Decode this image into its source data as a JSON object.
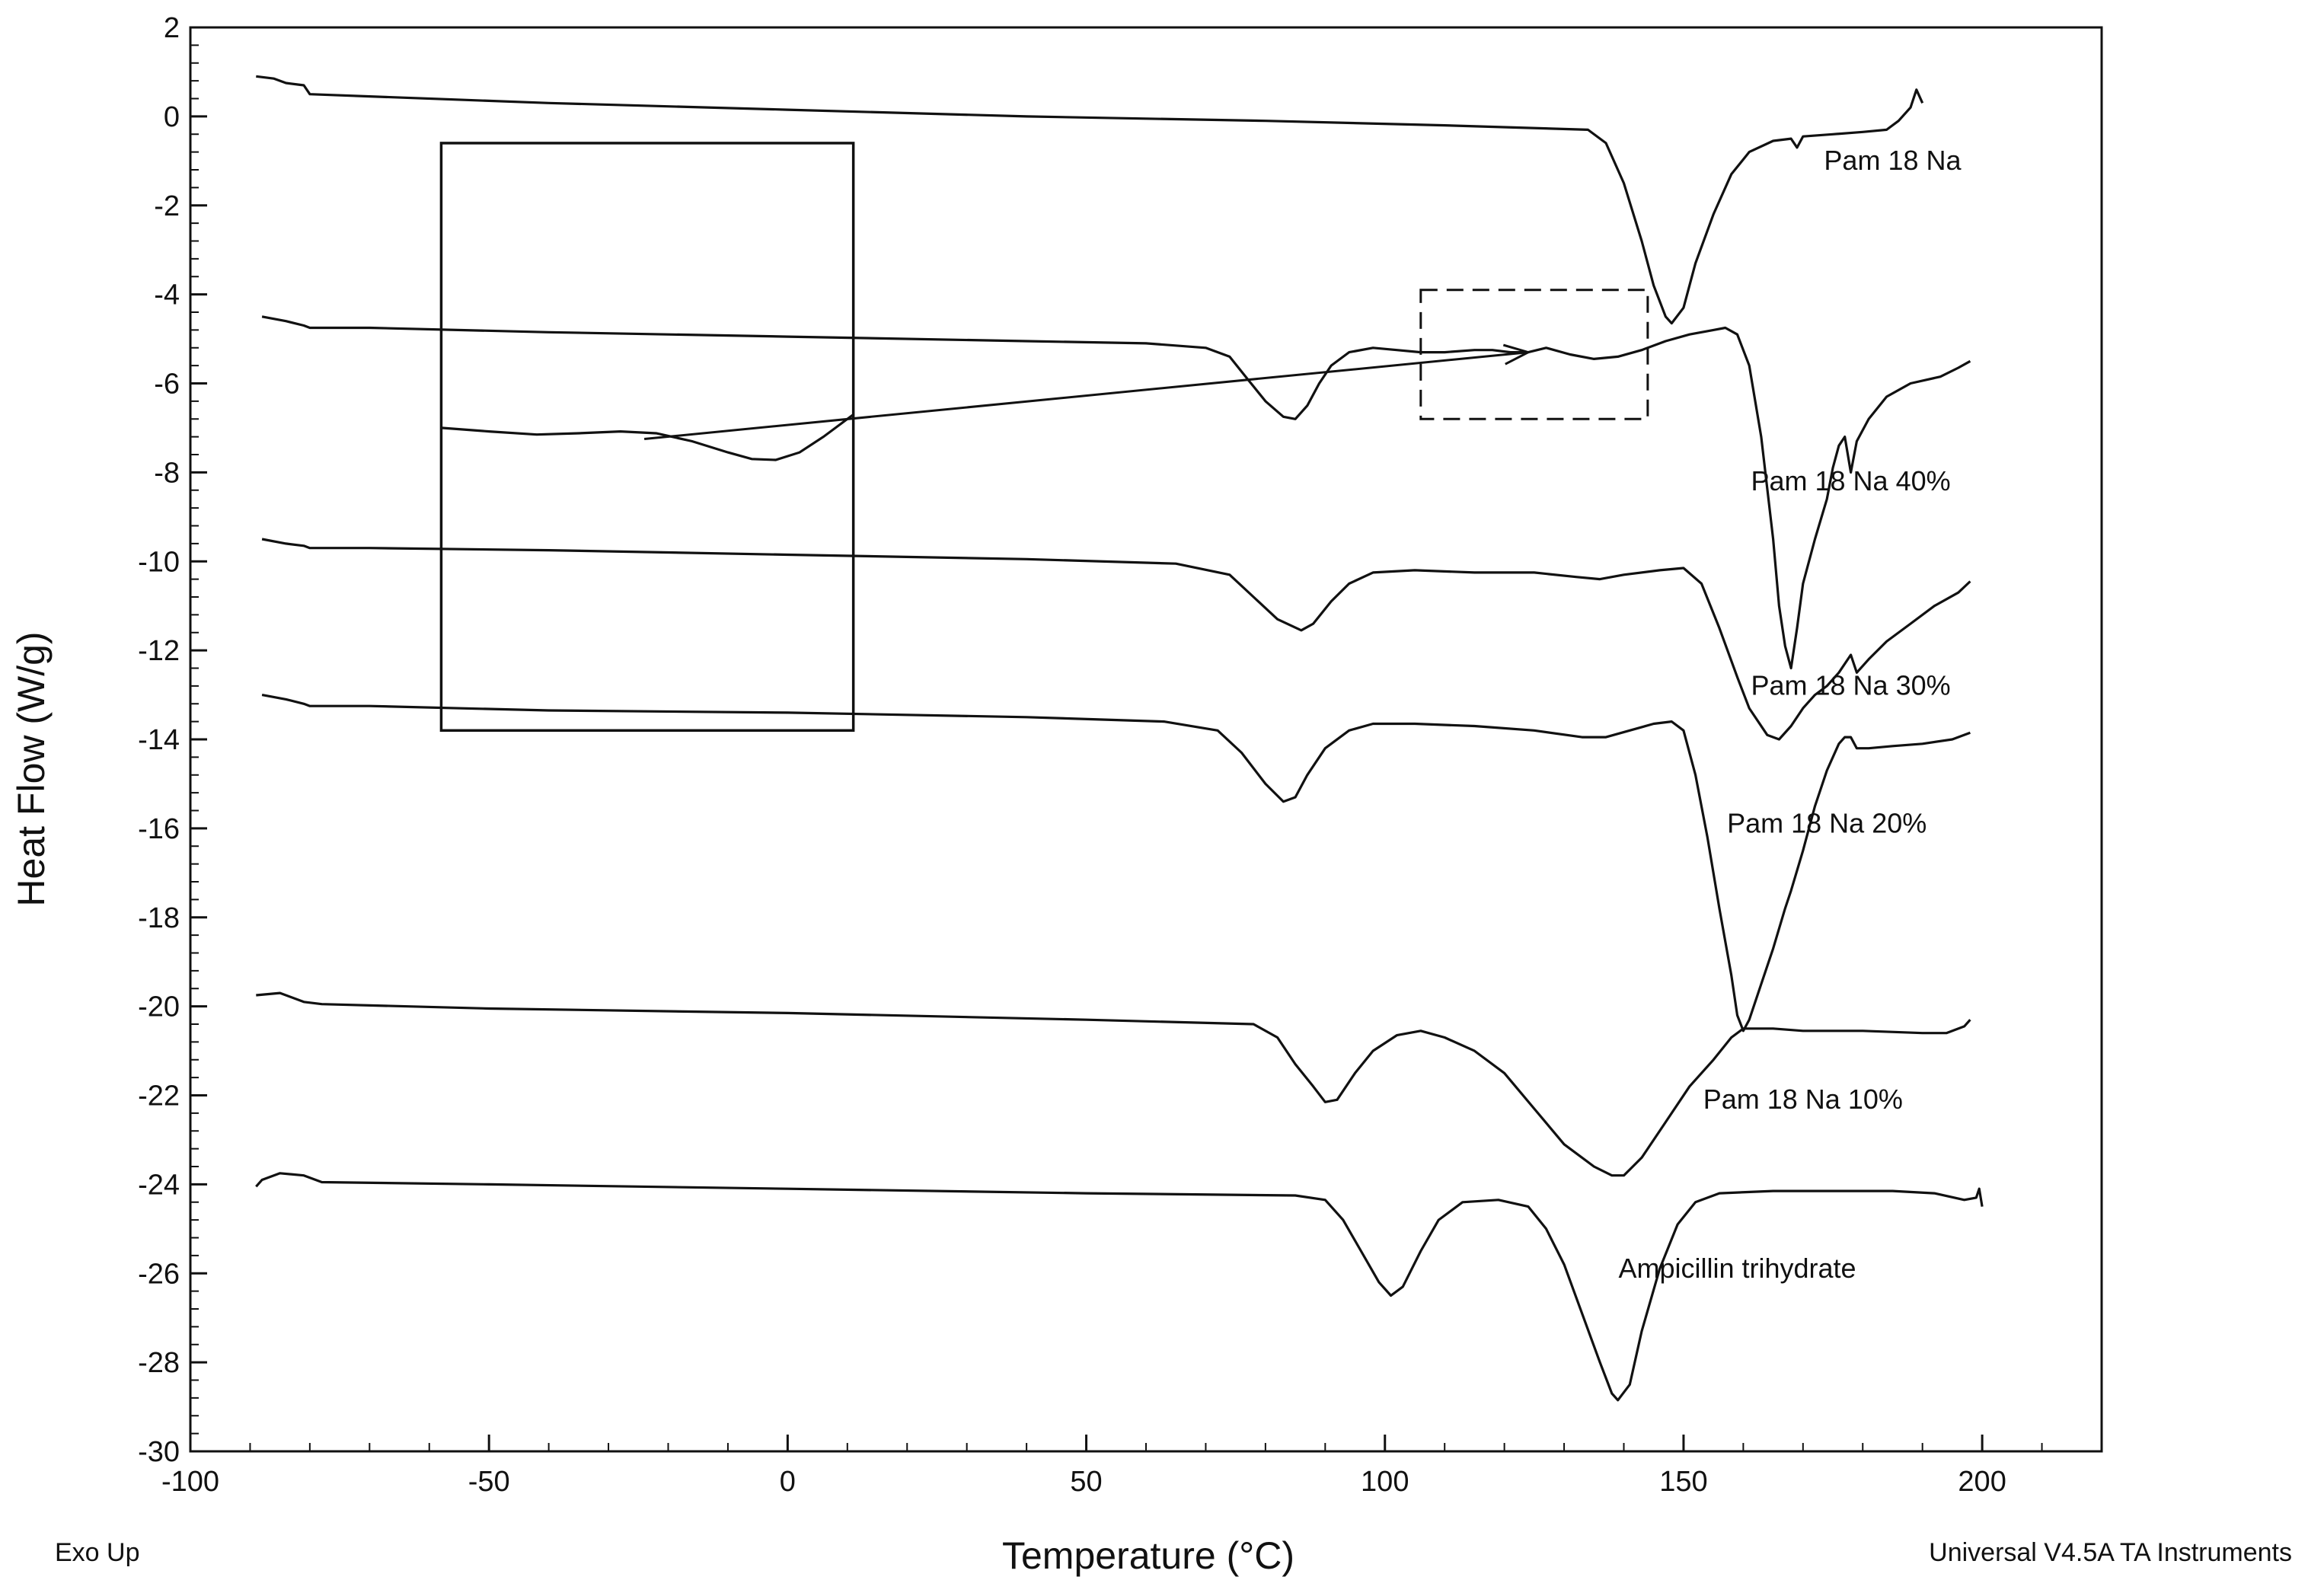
{
  "chart_data": {
    "type": "line",
    "xlabel": "Temperature (°C)",
    "ylabel": "Heat Flow (W/g)",
    "xlim": [
      -100,
      220
    ],
    "ylim": [
      -30,
      2
    ],
    "x_ticks": [
      -100,
      -50,
      0,
      50,
      100,
      150,
      200
    ],
    "y_ticks": [
      2,
      0,
      -2,
      -4,
      -6,
      -8,
      -10,
      -12,
      -14,
      -16,
      -18,
      -20,
      -22,
      -24,
      -26,
      -28,
      -30
    ],
    "grid": false,
    "legend": "none",
    "footer_left": "Exo Up",
    "footer_right": "Universal V4.5A TA Instruments",
    "series": [
      {
        "name": "Pam 18 Na",
        "label_at": [
          185,
          -1.2
        ],
        "points": [
          [
            -89,
            0.9
          ],
          [
            -86,
            0.85
          ],
          [
            -84,
            0.75
          ],
          [
            -81,
            0.7
          ],
          [
            -80,
            0.5
          ],
          [
            -70,
            0.45
          ],
          [
            -40,
            0.3
          ],
          [
            0,
            0.15
          ],
          [
            40,
            0.0
          ],
          [
            80,
            -0.1
          ],
          [
            110,
            -0.2
          ],
          [
            134,
            -0.3
          ],
          [
            137,
            -0.6
          ],
          [
            140,
            -1.5
          ],
          [
            143,
            -2.8
          ],
          [
            145,
            -3.8
          ],
          [
            147,
            -4.5
          ],
          [
            148,
            -4.65
          ],
          [
            150,
            -4.3
          ],
          [
            152,
            -3.3
          ],
          [
            155,
            -2.2
          ],
          [
            158,
            -1.3
          ],
          [
            161,
            -0.8
          ],
          [
            165,
            -0.55
          ],
          [
            168,
            -0.5
          ],
          [
            169,
            -0.7
          ],
          [
            170,
            -0.45
          ],
          [
            175,
            -0.4
          ],
          [
            180,
            -0.35
          ],
          [
            184,
            -0.3
          ],
          [
            186,
            -0.1
          ],
          [
            188,
            0.2
          ],
          [
            189,
            0.6
          ],
          [
            190,
            0.3
          ]
        ]
      },
      {
        "name": "Pam 18 Na 40%",
        "label_at": [
          178,
          -8.4
        ],
        "points": [
          [
            -88,
            -4.5
          ],
          [
            -84,
            -4.6
          ],
          [
            -81,
            -4.7
          ],
          [
            -80,
            -4.75
          ],
          [
            -70,
            -4.75
          ],
          [
            -40,
            -4.85
          ],
          [
            0,
            -4.95
          ],
          [
            40,
            -5.05
          ],
          [
            60,
            -5.1
          ],
          [
            70,
            -5.2
          ],
          [
            74,
            -5.4
          ],
          [
            77,
            -5.9
          ],
          [
            80,
            -6.4
          ],
          [
            83,
            -6.75
          ],
          [
            85,
            -6.8
          ],
          [
            87,
            -6.5
          ],
          [
            89,
            -6.0
          ],
          [
            91,
            -5.6
          ],
          [
            94,
            -5.3
          ],
          [
            98,
            -5.2
          ],
          [
            102,
            -5.25
          ],
          [
            106,
            -5.3
          ],
          [
            110,
            -5.3
          ],
          [
            115,
            -5.25
          ],
          [
            118,
            -5.25
          ],
          [
            121,
            -5.3
          ],
          [
            124,
            -5.3
          ],
          [
            127,
            -5.2
          ],
          [
            131,
            -5.35
          ],
          [
            135,
            -5.45
          ],
          [
            139,
            -5.4
          ],
          [
            143,
            -5.25
          ],
          [
            147,
            -5.05
          ],
          [
            151,
            -4.9
          ],
          [
            155,
            -4.8
          ],
          [
            157,
            -4.75
          ],
          [
            159,
            -4.9
          ],
          [
            161,
            -5.6
          ],
          [
            163,
            -7.2
          ],
          [
            165,
            -9.5
          ],
          [
            166,
            -11.0
          ],
          [
            167,
            -11.9
          ],
          [
            168,
            -12.4
          ],
          [
            169,
            -11.5
          ],
          [
            170,
            -10.5
          ],
          [
            172,
            -9.5
          ],
          [
            174,
            -8.6
          ],
          [
            175,
            -7.9
          ],
          [
            176,
            -7.4
          ],
          [
            177,
            -7.2
          ],
          [
            178,
            -8.0
          ],
          [
            179,
            -7.3
          ],
          [
            181,
            -6.8
          ],
          [
            184,
            -6.3
          ],
          [
            188,
            -6.0
          ],
          [
            193,
            -5.85
          ],
          [
            196,
            -5.65
          ],
          [
            198,
            -5.5
          ]
        ]
      },
      {
        "name": "Pam 18 Na 30%",
        "label_at": [
          178,
          -13.0
        ],
        "points": [
          [
            -88,
            -9.5
          ],
          [
            -84,
            -9.6
          ],
          [
            -81,
            -9.65
          ],
          [
            -80,
            -9.7
          ],
          [
            -70,
            -9.7
          ],
          [
            -40,
            -9.75
          ],
          [
            0,
            -9.85
          ],
          [
            40,
            -9.95
          ],
          [
            65,
            -10.05
          ],
          [
            74,
            -10.3
          ],
          [
            78,
            -10.8
          ],
          [
            82,
            -11.3
          ],
          [
            86,
            -11.55
          ],
          [
            88,
            -11.4
          ],
          [
            91,
            -10.9
          ],
          [
            94,
            -10.5
          ],
          [
            98,
            -10.25
          ],
          [
            105,
            -10.2
          ],
          [
            115,
            -10.25
          ],
          [
            125,
            -10.25
          ],
          [
            132,
            -10.35
          ],
          [
            136,
            -10.4
          ],
          [
            140,
            -10.3
          ],
          [
            146,
            -10.2
          ],
          [
            150,
            -10.15
          ],
          [
            153,
            -10.5
          ],
          [
            156,
            -11.5
          ],
          [
            159,
            -12.6
          ],
          [
            161,
            -13.3
          ],
          [
            164,
            -13.9
          ],
          [
            166,
            -14.0
          ],
          [
            168,
            -13.7
          ],
          [
            170,
            -13.3
          ],
          [
            172,
            -13.0
          ],
          [
            174,
            -12.8
          ],
          [
            176,
            -12.5
          ],
          [
            178,
            -12.1
          ],
          [
            179,
            -12.5
          ],
          [
            181,
            -12.2
          ],
          [
            184,
            -11.8
          ],
          [
            188,
            -11.4
          ],
          [
            192,
            -11.0
          ],
          [
            196,
            -10.7
          ],
          [
            198,
            -10.45
          ]
        ]
      },
      {
        "name": "Pam 18 Na 20%",
        "label_at": [
          174,
          -16.1
        ],
        "points": [
          [
            -88,
            -13.0
          ],
          [
            -84,
            -13.1
          ],
          [
            -81,
            -13.2
          ],
          [
            -80,
            -13.25
          ],
          [
            -70,
            -13.25
          ],
          [
            -40,
            -13.35
          ],
          [
            0,
            -13.4
          ],
          [
            40,
            -13.5
          ],
          [
            63,
            -13.6
          ],
          [
            72,
            -13.8
          ],
          [
            76,
            -14.3
          ],
          [
            80,
            -15.0
          ],
          [
            83,
            -15.4
          ],
          [
            85,
            -15.3
          ],
          [
            87,
            -14.8
          ],
          [
            90,
            -14.2
          ],
          [
            94,
            -13.8
          ],
          [
            98,
            -13.65
          ],
          [
            105,
            -13.65
          ],
          [
            115,
            -13.7
          ],
          [
            125,
            -13.8
          ],
          [
            133,
            -13.95
          ],
          [
            137,
            -13.95
          ],
          [
            141,
            -13.8
          ],
          [
            145,
            -13.65
          ],
          [
            148,
            -13.6
          ],
          [
            150,
            -13.8
          ],
          [
            152,
            -14.8
          ],
          [
            154,
            -16.2
          ],
          [
            156,
            -17.8
          ],
          [
            158,
            -19.3
          ],
          [
            159,
            -20.2
          ],
          [
            160,
            -20.55
          ],
          [
            161,
            -20.3
          ],
          [
            163,
            -19.5
          ],
          [
            165,
            -18.7
          ],
          [
            167,
            -17.8
          ],
          [
            168,
            -17.4
          ],
          [
            170,
            -16.5
          ],
          [
            172,
            -15.5
          ],
          [
            174,
            -14.7
          ],
          [
            176,
            -14.1
          ],
          [
            177,
            -13.95
          ],
          [
            178,
            -13.95
          ],
          [
            179,
            -14.2
          ],
          [
            181,
            -14.2
          ],
          [
            185,
            -14.15
          ],
          [
            190,
            -14.1
          ],
          [
            195,
            -14.0
          ],
          [
            198,
            -13.85
          ]
        ]
      },
      {
        "name": "Pam 18 Na 10%",
        "label_at": [
          170,
          -22.3
        ],
        "points": [
          [
            -89,
            -19.75
          ],
          [
            -85,
            -19.7
          ],
          [
            -81,
            -19.9
          ],
          [
            -78,
            -19.95
          ],
          [
            -50,
            -20.05
          ],
          [
            0,
            -20.15
          ],
          [
            50,
            -20.3
          ],
          [
            78,
            -20.4
          ],
          [
            82,
            -20.7
          ],
          [
            85,
            -21.3
          ],
          [
            88,
            -21.8
          ],
          [
            90,
            -22.15
          ],
          [
            92,
            -22.1
          ],
          [
            95,
            -21.5
          ],
          [
            98,
            -21.0
          ],
          [
            102,
            -20.65
          ],
          [
            106,
            -20.55
          ],
          [
            110,
            -20.7
          ],
          [
            115,
            -21.0
          ],
          [
            120,
            -21.5
          ],
          [
            125,
            -22.3
          ],
          [
            130,
            -23.1
          ],
          [
            135,
            -23.6
          ],
          [
            138,
            -23.8
          ],
          [
            140,
            -23.8
          ],
          [
            143,
            -23.4
          ],
          [
            147,
            -22.6
          ],
          [
            151,
            -21.8
          ],
          [
            155,
            -21.2
          ],
          [
            158,
            -20.7
          ],
          [
            160,
            -20.5
          ],
          [
            165,
            -20.5
          ],
          [
            170,
            -20.55
          ],
          [
            180,
            -20.55
          ],
          [
            190,
            -20.6
          ],
          [
            194,
            -20.6
          ],
          [
            197,
            -20.45
          ],
          [
            198,
            -20.3
          ]
        ]
      },
      {
        "name": "Ampicillin trihydrate",
        "label_at": [
          159,
          -26.1
        ],
        "points": [
          [
            -89,
            -24.05
          ],
          [
            -88,
            -23.9
          ],
          [
            -85,
            -23.75
          ],
          [
            -81,
            -23.8
          ],
          [
            -78,
            -23.95
          ],
          [
            -50,
            -24.0
          ],
          [
            0,
            -24.1
          ],
          [
            50,
            -24.2
          ],
          [
            85,
            -24.25
          ],
          [
            90,
            -24.35
          ],
          [
            93,
            -24.8
          ],
          [
            96,
            -25.5
          ],
          [
            99,
            -26.2
          ],
          [
            101,
            -26.5
          ],
          [
            103,
            -26.3
          ],
          [
            106,
            -25.5
          ],
          [
            109,
            -24.8
          ],
          [
            113,
            -24.4
          ],
          [
            119,
            -24.35
          ],
          [
            124,
            -24.5
          ],
          [
            127,
            -25.0
          ],
          [
            130,
            -25.8
          ],
          [
            133,
            -26.9
          ],
          [
            136,
            -28.0
          ],
          [
            138,
            -28.7
          ],
          [
            139,
            -28.85
          ],
          [
            141,
            -28.5
          ],
          [
            143,
            -27.3
          ],
          [
            146,
            -25.9
          ],
          [
            149,
            -24.9
          ],
          [
            152,
            -24.4
          ],
          [
            156,
            -24.2
          ],
          [
            165,
            -24.15
          ],
          [
            175,
            -24.15
          ],
          [
            185,
            -24.15
          ],
          [
            192,
            -24.2
          ],
          [
            197,
            -24.35
          ],
          [
            199,
            -24.3
          ],
          [
            199.5,
            -24.1
          ],
          [
            200,
            -24.5
          ]
        ]
      }
    ],
    "inset": {
      "description_box_x": [
        -58,
        11
      ],
      "description_box_y": [
        -13.8,
        -0.6
      ],
      "curve": [
        [
          -58,
          -7.0
        ],
        [
          -50,
          -7.08
        ],
        [
          -42,
          -7.15
        ],
        [
          -35,
          -7.12
        ],
        [
          -28,
          -7.08
        ],
        [
          -22,
          -7.12
        ],
        [
          -16,
          -7.3
        ],
        [
          -10,
          -7.55
        ],
        [
          -6,
          -7.7
        ],
        [
          -2,
          -7.72
        ],
        [
          2,
          -7.55
        ],
        [
          6,
          -7.2
        ],
        [
          11,
          -6.7
        ]
      ],
      "zoom_region_x": [
        106,
        144
      ],
      "zoom_region_y": [
        -6.8,
        -3.9
      ],
      "arrow_from": [
        -24,
        -7.25
      ],
      "arrow_to": [
        124,
        -5.3
      ]
    }
  }
}
